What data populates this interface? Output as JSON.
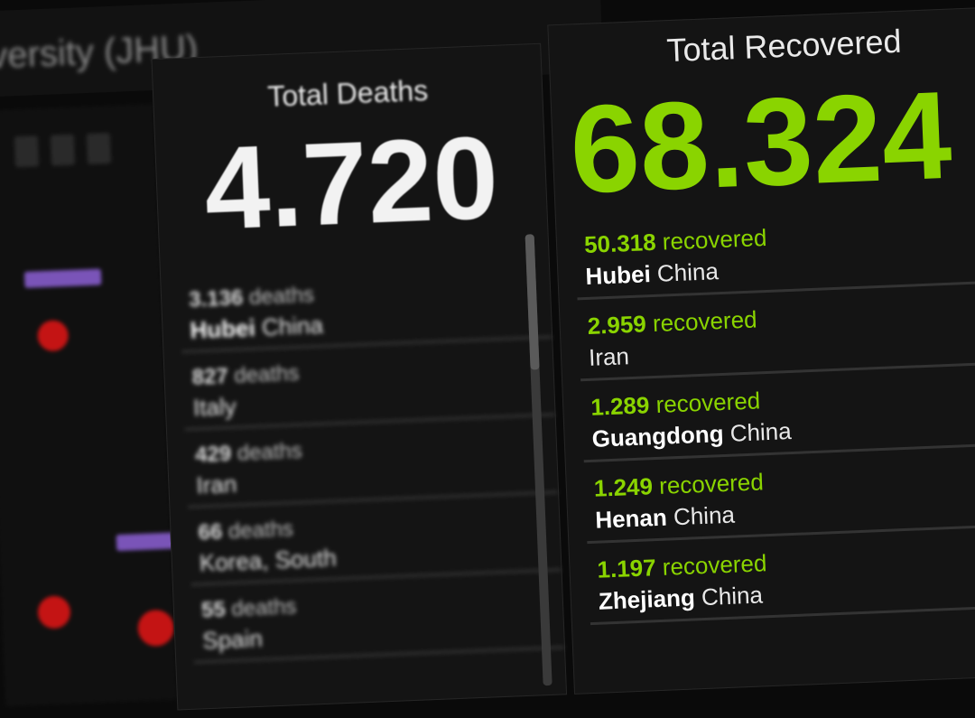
{
  "app": {
    "title": "niversity (JHU)"
  },
  "colors": {
    "recovered": "#8ad400",
    "deaths": "#f2f2f2",
    "map_marker": "#c41414",
    "legend_bar": "#7a54b8",
    "background": "#141414"
  },
  "deaths": {
    "title": "Total Deaths",
    "total": "4.720",
    "items": [
      {
        "count": "3.136",
        "unit": "deaths",
        "place": "Hubei",
        "country": "China"
      },
      {
        "count": "827",
        "unit": "deaths",
        "place": "",
        "country": "Italy"
      },
      {
        "count": "429",
        "unit": "deaths",
        "place": "",
        "country": "Iran"
      },
      {
        "count": "66",
        "unit": "deaths",
        "place": "",
        "country": "Korea, South"
      },
      {
        "count": "55",
        "unit": "deaths",
        "place": "",
        "country": "Spain"
      }
    ]
  },
  "recovered": {
    "title": "Total Recovered",
    "total": "68.324",
    "items": [
      {
        "count": "50.318",
        "unit": "recovered",
        "place": "Hubei",
        "country": "China"
      },
      {
        "count": "2.959",
        "unit": "recovered",
        "place": "",
        "country": "Iran"
      },
      {
        "count": "1.289",
        "unit": "recovered",
        "place": "Guangdong",
        "country": "China"
      },
      {
        "count": "1.249",
        "unit": "recovered",
        "place": "Henan",
        "country": "China"
      },
      {
        "count": "1.197",
        "unit": "recovered",
        "place": "Zhejiang",
        "country": "China"
      }
    ]
  }
}
